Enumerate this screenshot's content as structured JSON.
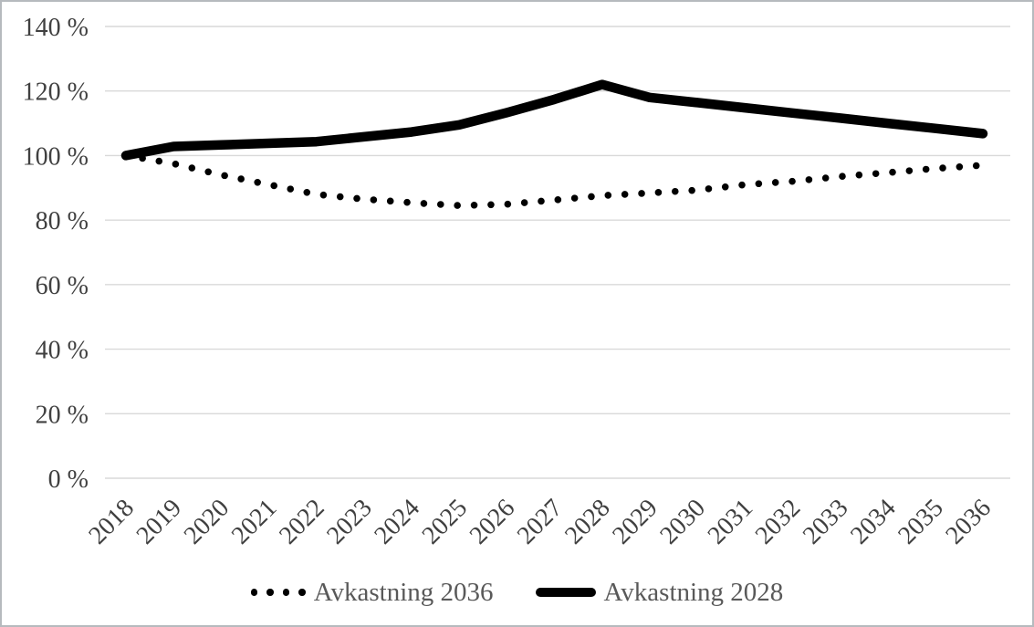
{
  "chart_data": {
    "type": "line",
    "title": "",
    "xlabel": "",
    "ylabel": "",
    "categories": [
      "2018",
      "2019",
      "2020",
      "2021",
      "2022",
      "2023",
      "2024",
      "2025",
      "2026",
      "2027",
      "2028",
      "2029",
      "2030",
      "2031",
      "2032",
      "2033",
      "2034",
      "2035",
      "2036"
    ],
    "x_tick_rotation": 45,
    "y_axis": {
      "min": 0,
      "max": 140,
      "ticks": [
        {
          "value": 0,
          "label": "0 %"
        },
        {
          "value": 20,
          "label": "20 %"
        },
        {
          "value": 40,
          "label": "40 %"
        },
        {
          "value": 60,
          "label": "60 %"
        },
        {
          "value": 80,
          "label": "80 %"
        },
        {
          "value": 100,
          "label": "100 %"
        },
        {
          "value": 120,
          "label": "120 %"
        },
        {
          "value": 140,
          "label": "140 %"
        }
      ]
    },
    "grid": "horizontal",
    "legend_position": "bottom-center",
    "series": [
      {
        "name": "Avkastning 2036",
        "style": "dotted",
        "color": "#000000",
        "values": [
          100,
          97.5,
          94,
          91,
          88,
          86.5,
          85.4,
          84.5,
          84.9,
          86.2,
          87.6,
          88.4,
          89.3,
          91,
          92,
          93.5,
          94.7,
          96,
          97
        ]
      },
      {
        "name": "Avkastning 2028",
        "style": "solid",
        "color": "#000000",
        "values": [
          100,
          102.8,
          103.3,
          103.8,
          104.3,
          105.8,
          107.3,
          109.5,
          113.3,
          117.4,
          122,
          118,
          116.4,
          114.8,
          113.2,
          111.6,
          110,
          108.4,
          106.8
        ]
      }
    ]
  },
  "colors": {
    "gridline": "#d9d9d9",
    "axis_text": "#404040",
    "legend_text": "#595959",
    "series": "#000000",
    "frame_border": "#b6babe",
    "background": "#ffffff"
  }
}
